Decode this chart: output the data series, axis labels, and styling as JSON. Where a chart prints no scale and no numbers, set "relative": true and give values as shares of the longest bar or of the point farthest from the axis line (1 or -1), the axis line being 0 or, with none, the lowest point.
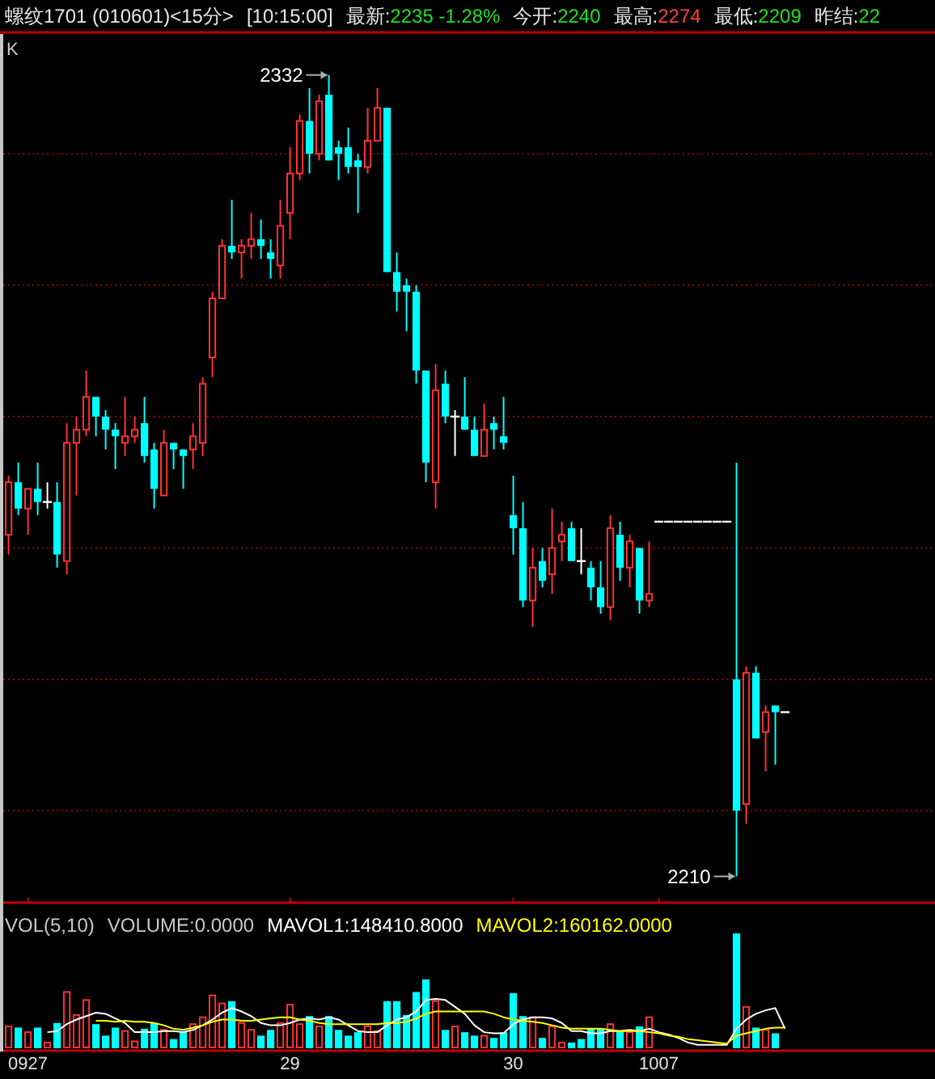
{
  "chart_data": [
    {
      "type": "candlestick",
      "title": "螺纹1701 (010601)<15分>",
      "subtitle": "[10:15:00]",
      "ylabel": "K",
      "annotations": [
        "最新:2235 -1.28%",
        "今开:2240",
        "最高:2274",
        "最低:2209",
        "昨结:22",
        "2332",
        "2210"
      ],
      "categories": [
        null,
        null,
        "0927",
        null,
        null,
        null,
        null,
        null,
        null,
        null,
        null,
        null,
        null,
        null,
        null,
        null,
        null,
        null,
        null,
        null,
        null,
        null,
        null,
        null,
        null,
        null,
        null,
        null,
        null,
        "29",
        null,
        null,
        null,
        null,
        null,
        null,
        null,
        null,
        null,
        null,
        null,
        null,
        null,
        null,
        null,
        null,
        null,
        null,
        null,
        null,
        null,
        null,
        "30",
        null,
        null,
        null,
        null,
        null,
        null,
        null,
        null,
        null,
        null,
        null,
        null,
        null,
        null,
        "1007",
        null,
        null,
        null,
        null,
        null,
        null,
        null,
        null,
        null,
        null,
        null,
        null,
        null
      ],
      "ohlc": [
        [
          2262,
          2271,
          2259,
          2270
        ],
        [
          2270,
          2273,
          2265,
          2266
        ],
        [
          2266,
          2269,
          2262,
          2269
        ],
        [
          2269,
          2273,
          2265,
          2267
        ],
        [
          2267,
          2270,
          2266,
          2267
        ],
        [
          2267,
          2270,
          2257,
          2259
        ],
        [
          2258,
          2279,
          2256,
          2276
        ],
        [
          2276,
          2280,
          2268,
          2278
        ],
        [
          2278,
          2287,
          2277,
          2283
        ],
        [
          2283,
          2283,
          2277,
          2280
        ],
        [
          2280,
          2281,
          2275,
          2278
        ],
        [
          2278,
          2279,
          2272,
          2277
        ],
        [
          2276,
          2283,
          2274,
          2277
        ],
        [
          2277,
          2280,
          2276,
          2278
        ],
        [
          2279,
          2283,
          2273,
          2274
        ],
        [
          2275,
          2276,
          2266,
          2269
        ],
        [
          2268,
          2278,
          2268,
          2276
        ],
        [
          2276,
          2276,
          2272,
          2275
        ],
        [
          2275,
          2275,
          2269,
          2274
        ],
        [
          2275,
          2279,
          2272,
          2277
        ],
        [
          2276,
          2286,
          2274,
          2285
        ],
        [
          2289,
          2299,
          2286,
          2298
        ],
        [
          2298,
          2307,
          2298,
          2306
        ],
        [
          2306,
          2313,
          2304,
          2305
        ],
        [
          2305,
          2307,
          2301,
          2306
        ],
        [
          2306,
          2311,
          2304,
          2307
        ],
        [
          2307,
          2310,
          2304,
          2306
        ],
        [
          2305,
          2307,
          2301,
          2304
        ],
        [
          2303,
          2313,
          2301,
          2309
        ],
        [
          2311,
          2321,
          2307,
          2317
        ],
        [
          2317,
          2326,
          2316,
          2325
        ],
        [
          2325,
          2330,
          2317,
          2320
        ],
        [
          2320,
          2329,
          2319,
          2328
        ],
        [
          2329,
          2332,
          2319,
          2319
        ],
        [
          2321,
          2322,
          2316,
          2320
        ],
        [
          2321,
          2324,
          2317,
          2318
        ],
        [
          2319,
          2320,
          2311,
          2318
        ],
        [
          2318,
          2327,
          2317,
          2322
        ],
        [
          2322,
          2330,
          2322,
          2327
        ],
        [
          2327,
          2327,
          2302,
          2302
        ],
        [
          2302,
          2305,
          2296,
          2299
        ],
        [
          2300,
          2301,
          2293,
          2299
        ],
        [
          2299,
          2300,
          2285,
          2287
        ],
        [
          2287,
          2287,
          2270,
          2273
        ],
        [
          2270,
          2288,
          2266,
          2284
        ],
        [
          2285,
          2287,
          2279,
          2280
        ],
        [
          2280,
          2281,
          2274,
          2280
        ],
        [
          2280,
          2286,
          2278,
          2278
        ],
        [
          2278,
          2280,
          2274,
          2274
        ],
        [
          2274,
          2282,
          2274,
          2278
        ],
        [
          2279,
          2280,
          2275,
          2278
        ],
        [
          2277,
          2283,
          2275,
          2276
        ],
        [
          2265,
          2271,
          2259,
          2263
        ],
        [
          2263,
          2267,
          2251,
          2252
        ],
        [
          2252,
          2260,
          2248,
          2257
        ],
        [
          2258,
          2260,
          2254,
          2255
        ],
        [
          2256,
          2266,
          2253,
          2260
        ],
        [
          2261,
          2264,
          2258,
          2262
        ],
        [
          2263,
          2264,
          2258,
          2258
        ],
        [
          2258,
          2263,
          2256,
          2258
        ],
        [
          2257,
          2258,
          2252,
          2254
        ],
        [
          2254,
          2258,
          2250,
          2251
        ],
        [
          2251,
          2265,
          2249,
          2263
        ],
        [
          2262,
          2264,
          2255,
          2257
        ],
        [
          2257,
          2262,
          2254,
          2261
        ],
        [
          2260,
          2260,
          2250,
          2252
        ],
        [
          2252,
          2261,
          2251,
          2253
        ],
        [
          2264,
          2264,
          2264,
          2264
        ],
        [
          2264,
          2264,
          2264,
          2264
        ],
        [
          2264,
          2264,
          2264,
          2264
        ],
        [
          2264,
          2264,
          2264,
          2264
        ],
        [
          2264,
          2264,
          2264,
          2264
        ],
        [
          2264,
          2264,
          2264,
          2264
        ],
        [
          2264,
          2264,
          2264,
          2264
        ],
        [
          2264,
          2264,
          2264,
          2264
        ],
        [
          2240,
          2273,
          2210,
          2220
        ],
        [
          2221,
          2242,
          2218,
          2241
        ],
        [
          2241,
          2242,
          2231,
          2231
        ],
        [
          2232,
          2236,
          2226,
          2235
        ],
        [
          2236,
          2236,
          2227,
          2235
        ],
        [
          2235,
          2235,
          2235,
          2235
        ]
      ],
      "colors": [
        "#ff3232",
        "#00ffff",
        "#ff3232",
        "#00ffff",
        "#ffffff",
        "#00ffff",
        "#ff3232",
        "#ff3232",
        "#ff3232",
        "#00ffff",
        "#00ffff",
        "#00ffff",
        "#ff3232",
        "#ff3232",
        "#00ffff",
        "#00ffff",
        "#ff3232",
        "#00ffff",
        "#00ffff",
        "#ff3232",
        "#ff3232",
        "#ff3232",
        "#ff3232",
        "#00ffff",
        "#ff3232",
        "#ff3232",
        "#00ffff",
        "#00ffff",
        "#ff3232",
        "#ff3232",
        "#ff3232",
        "#00ffff",
        "#ff3232",
        "#00ffff",
        "#00ffff",
        "#00ffff",
        "#00ffff",
        "#ff3232",
        "#ff3232",
        "#00ffff",
        "#00ffff",
        "#00ffff",
        "#00ffff",
        "#00ffff",
        "#ff3232",
        "#00ffff",
        "#ffffff",
        "#00ffff",
        "#00ffff",
        "#ff3232",
        "#00ffff",
        "#00ffff",
        "#00ffff",
        "#00ffff",
        "#ff3232",
        "#00ffff",
        "#ff3232",
        "#ff3232",
        "#00ffff",
        "#ffffff",
        "#00ffff",
        "#00ffff",
        "#ff3232",
        "#00ffff",
        "#ff3232",
        "#00ffff",
        "#ff3232",
        "#ffffff",
        "#ffffff",
        "#ffffff",
        "#ffffff",
        "#ffffff",
        "#ffffff",
        "#ffffff",
        "#ffffff",
        "#00ffff",
        "#ff3232",
        "#00ffff",
        "#ff3232",
        "#00ffff",
        "#ffffff"
      ],
      "ylim": [
        2206,
        2338
      ],
      "yticks": [
        {
          "value": 2220,
          "label": null
        },
        {
          "value": 2240,
          "label": null
        },
        {
          "value": 2260,
          "label": null
        },
        {
          "value": 2280,
          "label": null
        },
        {
          "value": 2300,
          "label": null
        },
        {
          "value": 2320,
          "label": null
        }
      ],
      "grid": "y",
      "tick_labels": false
    },
    {
      "type": "bar",
      "title": "VOL(5,10)",
      "annotations": [
        "VOLUME:0.0000"
      ],
      "relative": true,
      "tick_labels": "x",
      "legend": "top",
      "categories": [
        null,
        null,
        "0927",
        null,
        null,
        null,
        null,
        null,
        null,
        null,
        null,
        null,
        null,
        null,
        null,
        null,
        null,
        null,
        null,
        null,
        null,
        null,
        null,
        null,
        null,
        null,
        null,
        null,
        null,
        "29",
        null,
        null,
        null,
        null,
        null,
        null,
        null,
        null,
        null,
        null,
        null,
        null,
        null,
        null,
        null,
        null,
        null,
        null,
        null,
        null,
        null,
        null,
        "30",
        null,
        null,
        null,
        null,
        null,
        null,
        null,
        null,
        null,
        null,
        null,
        null,
        null,
        null,
        "1007",
        null,
        null,
        null,
        null,
        null,
        null,
        null,
        null,
        null,
        null,
        null,
        null,
        null
      ],
      "series": [
        {
          "values": [
            0.19,
            0.18,
            0.14,
            0.18,
            0.05,
            0.22,
            0.49,
            0.29,
            0.42,
            0.21,
            0.11,
            0.18,
            0.15,
            0.06,
            0.17,
            0.22,
            0.16,
            0.08,
            0.15,
            0.21,
            0.27,
            0.46,
            0.39,
            0.41,
            0.22,
            0.16,
            0.11,
            0.16,
            0.22,
            0.38,
            0.21,
            0.28,
            0.19,
            0.28,
            0.16,
            0.11,
            0.14,
            0.19,
            0.15,
            0.41,
            0.41,
            0.29,
            0.49,
            0.6,
            0.41,
            0.16,
            0.19,
            0.14,
            0.11,
            0.11,
            0.09,
            0.14,
            0.48,
            0.28,
            0.27,
            0.09,
            0.19,
            0.05,
            0.05,
            0.08,
            0.17,
            0.17,
            0.21,
            0.15,
            0.14,
            0.19,
            0.27,
            0,
            0,
            0,
            0,
            0,
            0,
            0,
            0,
            1,
            0.36,
            0.18,
            0.16,
            0.13,
            0
          ],
          "colors": [
            "#ff3232",
            "#00ffff",
            "#ff3232",
            "#00ffff",
            "#ff3232",
            "#00ffff",
            "#ff3232",
            "#ff3232",
            "#ff3232",
            "#00ffff",
            "#00ffff",
            "#00ffff",
            "#ff3232",
            "#ff3232",
            "#00ffff",
            "#00ffff",
            "#ff3232",
            "#00ffff",
            "#00ffff",
            "#ff3232",
            "#ff3232",
            "#ff3232",
            "#ff3232",
            "#00ffff",
            "#ff3232",
            "#ff3232",
            "#00ffff",
            "#00ffff",
            "#ff3232",
            "#ff3232",
            "#ff3232",
            "#00ffff",
            "#ff3232",
            "#00ffff",
            "#00ffff",
            "#00ffff",
            "#00ffff",
            "#ff3232",
            "#ff3232",
            "#00ffff",
            "#00ffff",
            "#00ffff",
            "#00ffff",
            "#00ffff",
            "#ff3232",
            "#00ffff",
            "#ff3232",
            "#00ffff",
            "#00ffff",
            "#ff3232",
            "#00ffff",
            "#00ffff",
            "#00ffff",
            "#00ffff",
            "#ff3232",
            "#00ffff",
            "#ff3232",
            "#ff3232",
            "#00ffff",
            "#00ffff",
            "#00ffff",
            "#00ffff",
            "#ff3232",
            "#00ffff",
            "#ff3232",
            "#00ffff",
            "#ff3232",
            "#ff3232",
            "#ff3232",
            "#ff3232",
            "#ff3232",
            "#ff3232",
            "#ff3232",
            "#ff3232",
            "#ff3232",
            "#00ffff",
            "#ff3232",
            "#00ffff",
            "#ff3232",
            "#00ffff",
            "#ff3232"
          ]
        },
        {
          "name": "MAVOL1:148410.8000",
          "type": "line",
          "color": "#ffffff",
          "values": [
            null,
            null,
            null,
            null,
            0.14,
            0.15,
            0.21,
            0.25,
            0.28,
            0.31,
            0.3,
            0.26,
            0.22,
            0.14,
            0.14,
            0.14,
            0.15,
            0.15,
            0.14,
            0.16,
            0.2,
            0.25,
            0.31,
            0.35,
            0.32,
            0.28,
            0.22,
            0.2,
            0.2,
            0.22,
            0.25,
            0.26,
            0.25,
            0.27,
            0.25,
            0.2,
            0.15,
            0.14,
            0.14,
            0.2,
            0.25,
            0.27,
            0.32,
            0.42,
            0.43,
            0.42,
            0.36,
            0.3,
            0.2,
            0.14,
            0.13,
            0.13,
            0.21,
            0.25,
            0.27,
            0.27,
            0.26,
            0.22,
            0.15,
            0.15,
            0.13,
            0.13,
            0.15,
            0.15,
            0.16,
            0.15,
            0.17,
            0.14,
            0.12,
            0.09,
            0.05,
            0.03,
            0.03,
            0.03,
            0.03,
            0.17,
            0.25,
            0.3,
            0.33,
            0.35,
            0.17
          ]
        },
        {
          "name": "MAVOL2:160162.0000",
          "type": "line",
          "color": "#ffff00",
          "values": [
            null,
            null,
            null,
            null,
            null,
            null,
            null,
            null,
            null,
            0.24,
            0.24,
            0.23,
            0.24,
            0.23,
            0.23,
            0.22,
            0.2,
            0.17,
            0.16,
            0.18,
            0.2,
            0.23,
            0.25,
            0.25,
            0.24,
            0.24,
            0.25,
            0.26,
            0.27,
            0.27,
            0.25,
            0.24,
            0.22,
            0.21,
            0.21,
            0.21,
            0.21,
            0.21,
            0.21,
            0.22,
            0.22,
            0.23,
            0.26,
            0.3,
            0.32,
            0.32,
            0.32,
            0.32,
            0.32,
            0.32,
            0.3,
            0.27,
            0.25,
            0.24,
            0.23,
            0.22,
            0.2,
            0.18,
            0.17,
            0.17,
            0.17,
            0.17,
            0.16,
            0.15,
            0.15,
            0.15,
            0.14,
            0.13,
            0.11,
            0.1,
            0.08,
            0.07,
            0.06,
            0.05,
            0.04,
            0.11,
            0.13,
            0.15,
            0.17,
            0.18,
            0.18
          ]
        }
      ]
    }
  ]
}
